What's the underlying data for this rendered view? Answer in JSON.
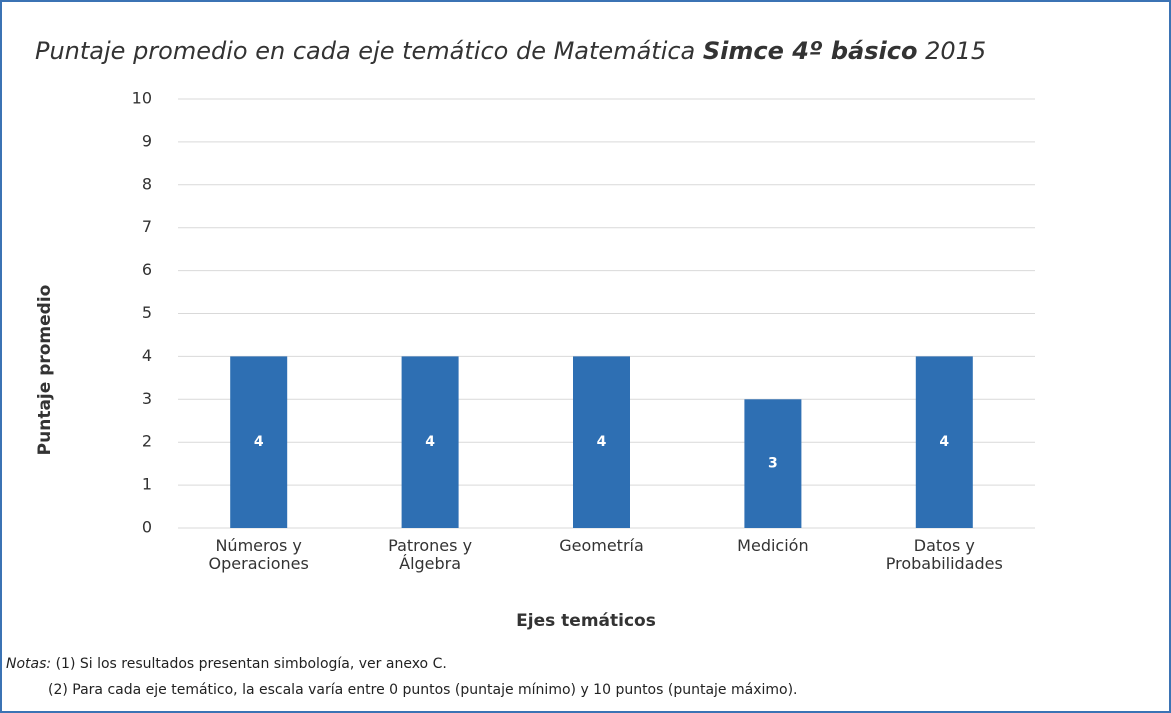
{
  "chart_data": {
    "type": "bar",
    "title": {
      "part1": "Puntaje promedio en cada eje temático de Matemática ",
      "part2": "Simce 4º básico",
      "part3": " 2015"
    },
    "categories": [
      "Números y Operaciones",
      "Patrones y Álgebra",
      "Geometría",
      "Medición",
      "Datos y Probabilidades"
    ],
    "values": [
      4,
      4,
      4,
      3,
      4
    ],
    "color": "#2e6fb3",
    "ylim": [
      0,
      10
    ],
    "yticks": [
      0,
      1,
      2,
      3,
      4,
      5,
      6,
      7,
      8,
      9,
      10
    ],
    "grid": true,
    "y_label": "Puntaje promedio",
    "x_label": "Ejes temáticos"
  },
  "notes": {
    "label": "Notas:",
    "items": [
      "(1) Si los resultados presentan simbología, ver anexo C.",
      "(2) Para cada eje temático, la escala varía entre 0 puntos (puntaje mínimo) y 10 puntos (puntaje máximo)."
    ]
  }
}
